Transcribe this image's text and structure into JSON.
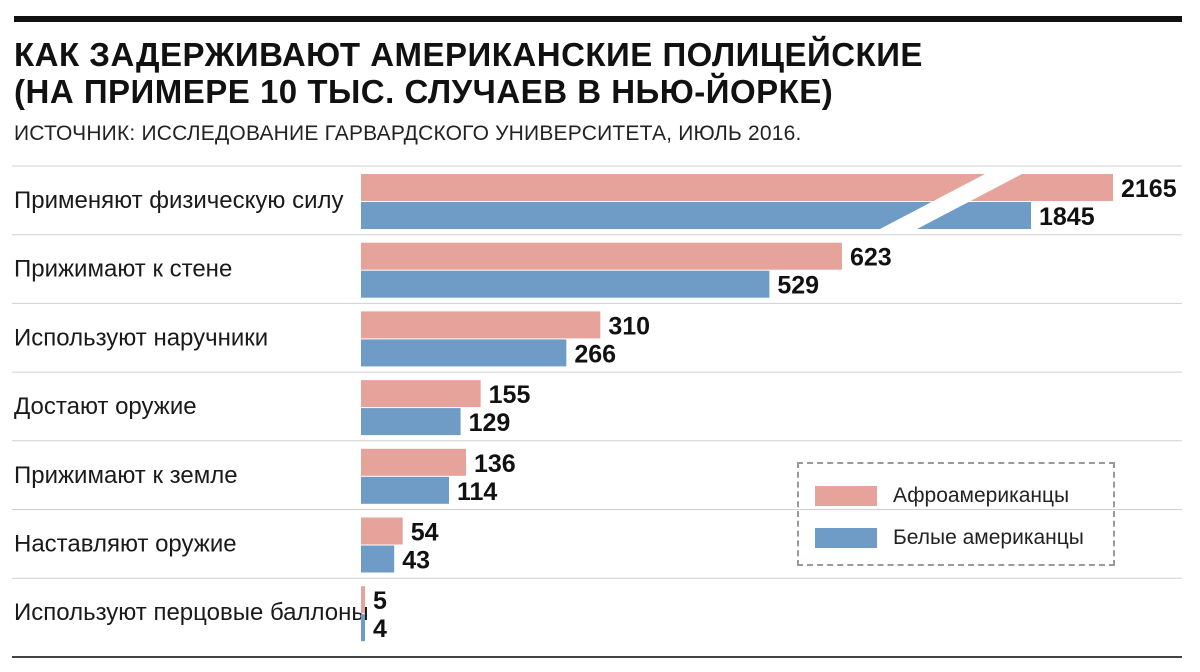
{
  "title_lines": [
    "КАК ЗАДЕРЖИВАЮТ АМЕРИКАНСКИЕ ПОЛИЦЕЙСКИЕ",
    "(НА ПРИМЕРЕ 10 ТЫС. СЛУЧАЕВ В НЬЮ-ЙОРКЕ)"
  ],
  "source": "ИСТОЧНИК: ИССЛЕДОВАНИЕ ГАРВАРДСКОГО УНИВЕРСИТЕТА, ИЮЛЬ 2016.",
  "colors": {
    "afro": "#e6a39b",
    "white": "#6e9cc6"
  },
  "chart_data": {
    "type": "bar",
    "orientation": "horizontal",
    "title": "КАК ЗАДЕРЖИВАЮТ АМЕРИКАНСКИЕ ПОЛИЦЕЙСКИЕ (НА ПРИМЕРЕ 10 ТЫС. СЛУЧАЕВ В НЬЮ-ЙОРКЕ)",
    "categories": [
      "Применяют физическую силу",
      "Прижимают к стене",
      "Используют наручники",
      "Достают оружие",
      "Прижимают к земле",
      "Наставляют оружие",
      "Используют перцовые баллоны"
    ],
    "series": [
      {
        "name": "Афроамериканцы",
        "values": [
          2165,
          623,
          310,
          155,
          136,
          54,
          5
        ]
      },
      {
        "name": "Белые американцы",
        "values": [
          1845,
          529,
          266,
          129,
          114,
          43,
          4
        ]
      }
    ],
    "axis_break": {
      "category": "Применяют физическую силу"
    },
    "legend_position": "bottom-right",
    "grid": false
  }
}
